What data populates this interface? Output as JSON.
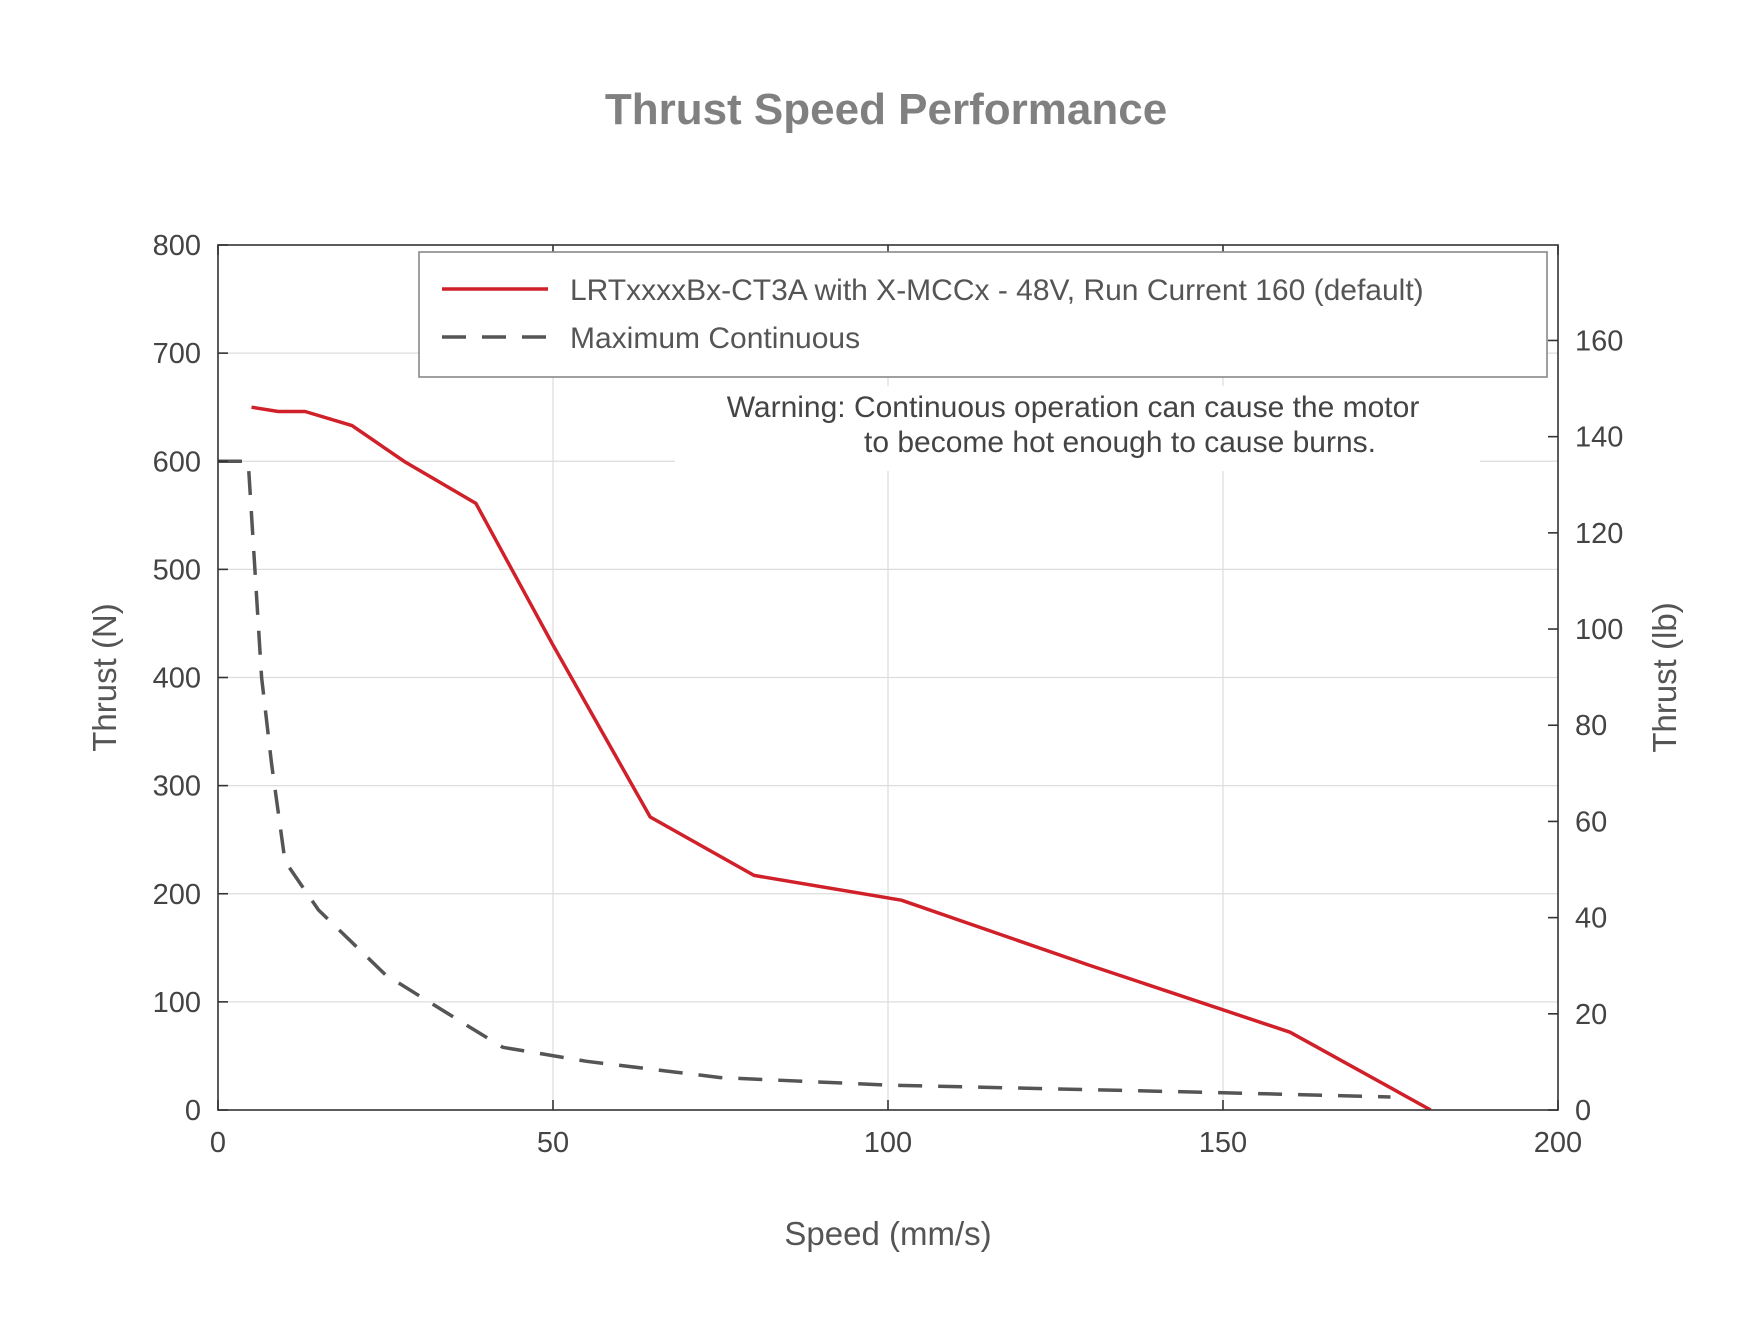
{
  "chart_data": {
    "type": "line",
    "title": "Thrust Speed Performance",
    "xlabel": "Speed (mm/s)",
    "ylabel": "Thrust (N)",
    "y2label": "Thrust (lb)",
    "xlim": [
      0,
      200
    ],
    "ylim": [
      0,
      800
    ],
    "y2lim": [
      0,
      179.85
    ],
    "xticks": [
      0,
      50,
      100,
      150,
      200
    ],
    "yticks": [
      0,
      100,
      200,
      300,
      400,
      500,
      600,
      700,
      800
    ],
    "y2ticks": [
      0,
      20,
      40,
      60,
      80,
      100,
      120,
      140,
      160
    ],
    "grid": true,
    "legend_position": "top-right",
    "series": [
      {
        "name": "LRTxxxxBx-CT3A with X-MCCx - 48V, Run Current 160 (default)",
        "style": "solid",
        "color": "#d0202a",
        "x": [
          5,
          9,
          13,
          20,
          28,
          38.5,
          50,
          64.5,
          80,
          102,
          130,
          160,
          181
        ],
        "y": [
          650,
          646,
          646,
          633,
          599,
          561,
          430,
          271,
          217,
          194,
          134,
          72,
          0
        ]
      },
      {
        "name": "Maximum Continuous",
        "style": "dashed",
        "color": "#555555",
        "x": [
          0,
          4.5,
          6.5,
          8,
          10,
          15,
          25,
          38,
          42.5,
          55,
          75,
          100,
          150,
          175
        ],
        "y": [
          600,
          600,
          400,
          320,
          230,
          185,
          125,
          75,
          58,
          45,
          30,
          23,
          16,
          12
        ]
      }
    ],
    "annotation": {
      "line1": "Warning: Continuous operation can cause the motor",
      "line2": "to become hot enough to cause burns."
    }
  }
}
